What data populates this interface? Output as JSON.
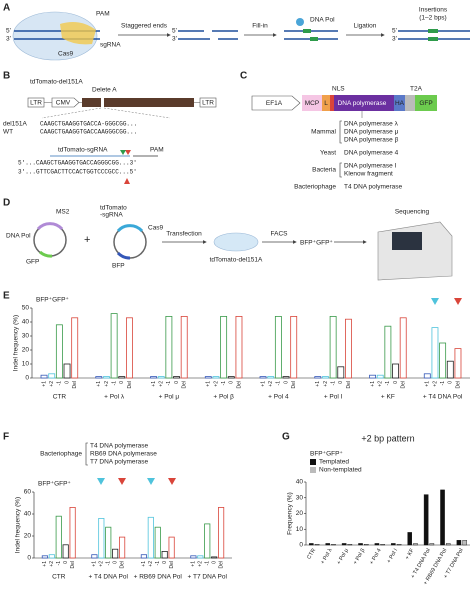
{
  "panel_a": {
    "label": "A",
    "five": "5'",
    "three": "3'",
    "pam": "PAM",
    "sgrna": "sgRNA",
    "cas9": "Cas9",
    "step1": "Staggered ends",
    "step2": "Fill-in",
    "dna_pol": "DNA Pol",
    "step3": "Ligation",
    "result": "Insertions",
    "result_note": "(1–2 bps)"
  },
  "panel_b": {
    "label": "B",
    "construct": "tdTomato-del151A",
    "delete": "Delete A",
    "ltr": "LTR",
    "cmv": "CMV",
    "del_name": "del151A",
    "wt_name": "WT",
    "del_seq": "CAAGCTGAAGGTGACCA-GGGCGG...",
    "wt_seq": "CAAGCTGAAGGTGACCAAGGGCGG...",
    "sgrna": "tdTomato-sgRNA",
    "pam": "PAM",
    "top_strand": "5'...CAAGCTGAAGGTGACCAGGGCGG...3'",
    "bottom_strand": "3'...GTTCGACTTCCACTGGTCCCGCC...5'"
  },
  "panel_c": {
    "label": "C",
    "promoter": "EF1A",
    "mcp": "MCP",
    "linker": "L",
    "nls": "NLS",
    "pol": "DNA polymerase",
    "ha": "HA",
    "t2a": "T2A",
    "gfp": "GFP",
    "groups": [
      {
        "name": "Mammal",
        "items": [
          "DNA polymerase λ",
          "DNA polymerase μ",
          "DNA polymerase β"
        ]
      },
      {
        "name": "Yeast",
        "items": [
          "DNA polymerase 4"
        ]
      },
      {
        "name": "Bacteria",
        "items": [
          "DNA polymerase I",
          "Klenow fragment"
        ]
      },
      {
        "name": "Bacteriophage",
        "items": [
          "T4 DNA polymerase"
        ]
      }
    ]
  },
  "panel_d": {
    "label": "D",
    "ms2": "MS2",
    "dna_pol": "DNA Pol",
    "gfp": "GFP",
    "plus": "+",
    "sg_plasmid": [
      "tdTomato",
      "-sgRNA"
    ],
    "cas9": "Cas9",
    "bfp": "BFP",
    "transfection": "Transfection",
    "facs": "FACS",
    "cells": "tdTomato-del151A",
    "population": "BFP⁺GFP⁺",
    "sequencing": "Sequencing"
  },
  "panel_f_legend": {
    "title": "Bacteriophage",
    "items": [
      "T4 DNA polymerase",
      "RB69 DNA polymerase",
      "T7 DNA polymerase"
    ]
  },
  "chart_data": [
    {
      "type": "bar",
      "label": "E",
      "subtitle": "BFP⁺GFP⁺",
      "y_label": "Indel frequency (%)",
      "bar_style": "outline",
      "legend": false,
      "categories": [
        "CTR",
        "+ Pol λ",
        "+ Pol μ",
        "+ Pol β",
        "+ Pol 4",
        "+ Pol I",
        "+ KF",
        "+ T4 DNA Pol"
      ],
      "series": [
        {
          "name": "+1",
          "color": "#3457b8",
          "values": [
            2,
            1,
            1,
            1,
            1,
            1,
            2,
            3
          ]
        },
        {
          "name": "+2",
          "color": "#4fc3dc",
          "values": [
            3,
            1,
            1,
            1,
            1,
            1,
            2,
            36
          ]
        },
        {
          "name": "-1",
          "color": "#3a9a4a",
          "values": [
            38,
            46,
            44,
            44,
            44,
            44,
            37,
            25
          ]
        },
        {
          "name": "0",
          "color": "#222222",
          "values": [
            10,
            1,
            1,
            1,
            1,
            8,
            10,
            12
          ]
        },
        {
          "name": "Del",
          "color": "#d9453a",
          "values": [
            43,
            43,
            44,
            44,
            44,
            42,
            43,
            21
          ]
        }
      ],
      "ylim": [
        0,
        50
      ],
      "yticks": [
        0,
        10,
        20,
        30,
        40,
        50
      ]
    },
    {
      "type": "bar",
      "label": "F",
      "subtitle": "BFP⁺GFP⁺",
      "y_label": "Indel frequency (%)",
      "bar_style": "outline",
      "legend": false,
      "categories": [
        "CTR",
        "+ T4 DNA Pol",
        "+ RB69 DNA Pol",
        "+ T7 DNA Pol"
      ],
      "series": [
        {
          "name": "+1",
          "color": "#3457b8",
          "values": [
            2,
            3,
            3,
            2
          ]
        },
        {
          "name": "+2",
          "color": "#4fc3dc",
          "values": [
            3,
            36,
            37,
            2
          ]
        },
        {
          "name": "-1",
          "color": "#3a9a4a",
          "values": [
            38,
            28,
            28,
            31
          ]
        },
        {
          "name": "0",
          "color": "#222222",
          "values": [
            12,
            8,
            6,
            1
          ]
        },
        {
          "name": "Del",
          "color": "#d9453a",
          "values": [
            46,
            19,
            19,
            46
          ]
        }
      ],
      "ylim": [
        0,
        60
      ],
      "yticks": [
        0,
        20,
        40,
        60
      ]
    },
    {
      "type": "bar",
      "label": "G",
      "title": "+2 bp pattern",
      "subtitle": "BFP⁺GFP⁺",
      "y_label": "Frequency (%)",
      "bar_style": "filled",
      "legend": true,
      "categories": [
        "CTR",
        "+ Pol λ",
        "+ Pol μ",
        "+ Pol β",
        "+ Pol 4",
        "+ Pol I",
        "+ KF",
        "+ T4 DNA Pol",
        "+ RB69 DNA Pol",
        "+ T7 DNA Pol"
      ],
      "series": [
        {
          "name": "Templated",
          "color": "#111111",
          "values": [
            1,
            1,
            1,
            1,
            1,
            1,
            8,
            32,
            35,
            3
          ]
        },
        {
          "name": "Non-templated",
          "color": "#bbbbbb",
          "values": [
            0.5,
            0.5,
            0.5,
            0.5,
            0.5,
            0.5,
            1,
            1,
            1,
            3
          ]
        }
      ],
      "ylim": [
        0,
        40
      ],
      "yticks": [
        0,
        10,
        20,
        30,
        40
      ]
    }
  ]
}
